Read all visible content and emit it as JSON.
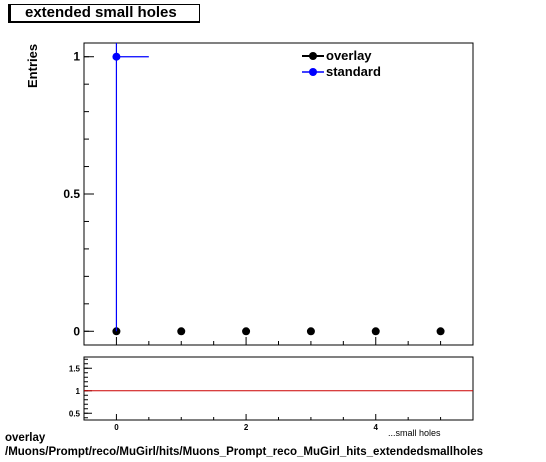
{
  "chart_data": [
    {
      "type": "scatter",
      "title": "extended small holes",
      "ylabel": "Entries",
      "xlim": [
        -0.5,
        5.5
      ],
      "ylim": [
        -0.05,
        1.05
      ],
      "yticks": [
        0,
        0.5,
        1
      ],
      "ytick_labels": [
        "0",
        "0.5",
        "1"
      ],
      "grid": false,
      "legend_position": "top-right",
      "series": [
        {
          "name": "overlay",
          "color": "#000000",
          "points": [
            {
              "x": 0,
              "y": 0
            },
            {
              "x": 1,
              "y": 0
            },
            {
              "x": 2,
              "y": 0
            },
            {
              "x": 3,
              "y": 0
            },
            {
              "x": 4,
              "y": 0
            },
            {
              "x": 5,
              "y": 0
            }
          ]
        },
        {
          "name": "standard",
          "color": "#0000ff",
          "points": [
            {
              "x": 0,
              "y": 1,
              "xerr_low": 0,
              "xerr_high": 0.5,
              "yerr_low": 1,
              "yerr_high": 0.05
            }
          ]
        }
      ]
    },
    {
      "type": "line",
      "xlim": [
        -0.5,
        5.5
      ],
      "ylim": [
        0.35,
        1.75
      ],
      "yticks": [
        0.5,
        1,
        1.5
      ],
      "ytick_labels": [
        "0.5",
        "1",
        "1.5"
      ],
      "xticks": [
        0,
        2,
        4
      ],
      "xtick_labels": [
        "0",
        "2",
        "4"
      ],
      "xlabel_fragment": "...small holes",
      "series": [
        {
          "name": "",
          "color": "#cc0000",
          "points": [
            {
              "x": -0.5,
              "y": 1
            },
            {
              "x": 5.5,
              "y": 1
            }
          ]
        }
      ]
    }
  ],
  "captions": {
    "line1": "overlay",
    "line2": "/Muons/Prompt/reco/MuGirl/hits/Muons_Prompt_reco_MuGirl_hits_extendedsmallholes"
  }
}
